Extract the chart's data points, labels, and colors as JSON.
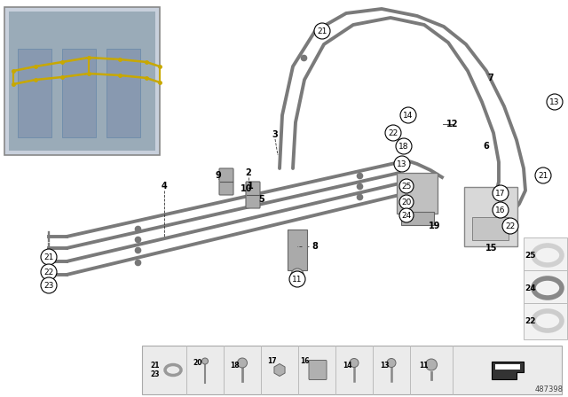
{
  "bg_color": "#ffffff",
  "diagram_num": "487398",
  "line_color": "#7a7a7a",
  "line_width": 2.8,
  "inset_bg": "#c8d0dc",
  "inset_photo_bg": "#9aabb8",
  "gold_color": "#c8a800",
  "circle_label_bg": "#ffffff",
  "circle_label_edge": "#000000",
  "bracket_color": "#aaaaaa",
  "bracket_edge": "#666666",
  "legend_bg": "#ebebeb",
  "legend_edge": "#aaaaaa",
  "ring25_color": "#d0d0d0",
  "ring24_color": "#888888",
  "ring22_color": "#cccccc"
}
